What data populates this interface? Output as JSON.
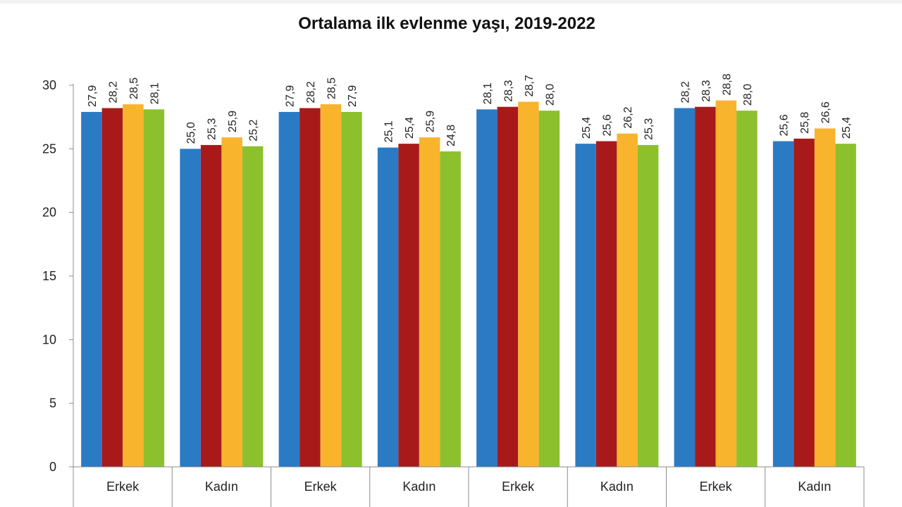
{
  "chart_data": {
    "type": "bar",
    "title": "Ortalama ilk evlenme yaşı, 2019-2022",
    "xlabel": "",
    "ylabel": "",
    "ylim": [
      0,
      30
    ],
    "yticks": [
      "0",
      "5",
      "10",
      "15",
      "20",
      "25",
      "30"
    ],
    "grid": false,
    "legend": "none",
    "categories": [
      "Erkek",
      "Kadın",
      "Erkek",
      "Kadın",
      "Erkek",
      "Kadın",
      "Erkek",
      "Kadın"
    ],
    "series": [
      {
        "color": "#2b7bc4",
        "values": [
          27.9,
          25.0,
          27.9,
          25.1,
          28.1,
          25.4,
          28.2,
          25.6
        ],
        "labels": [
          "27,9",
          "25,0",
          "27,9",
          "25,1",
          "28,1",
          "25,4",
          "28,2",
          "25,6"
        ]
      },
      {
        "color": "#a81a1a",
        "values": [
          28.2,
          25.3,
          28.2,
          25.4,
          28.3,
          25.6,
          28.3,
          25.8
        ],
        "labels": [
          "28,2",
          "25,3",
          "28,2",
          "25,4",
          "28,3",
          "25,6",
          "28,3",
          "25,8"
        ]
      },
      {
        "color": "#f9b42d",
        "values": [
          28.5,
          25.9,
          28.5,
          25.9,
          28.7,
          26.2,
          28.8,
          26.6
        ],
        "labels": [
          "28,5",
          "25,9",
          "28,5",
          "25,9",
          "28,7",
          "26,2",
          "28,8",
          "26,6"
        ]
      },
      {
        "color": "#8cc12d",
        "values": [
          28.1,
          25.2,
          27.9,
          24.8,
          28.0,
          25.3,
          28.0,
          25.4
        ],
        "labels": [
          "28,1",
          "25,2",
          "27,9",
          "24,8",
          "28,0",
          "25,3",
          "28,0",
          "25,4"
        ]
      }
    ]
  }
}
